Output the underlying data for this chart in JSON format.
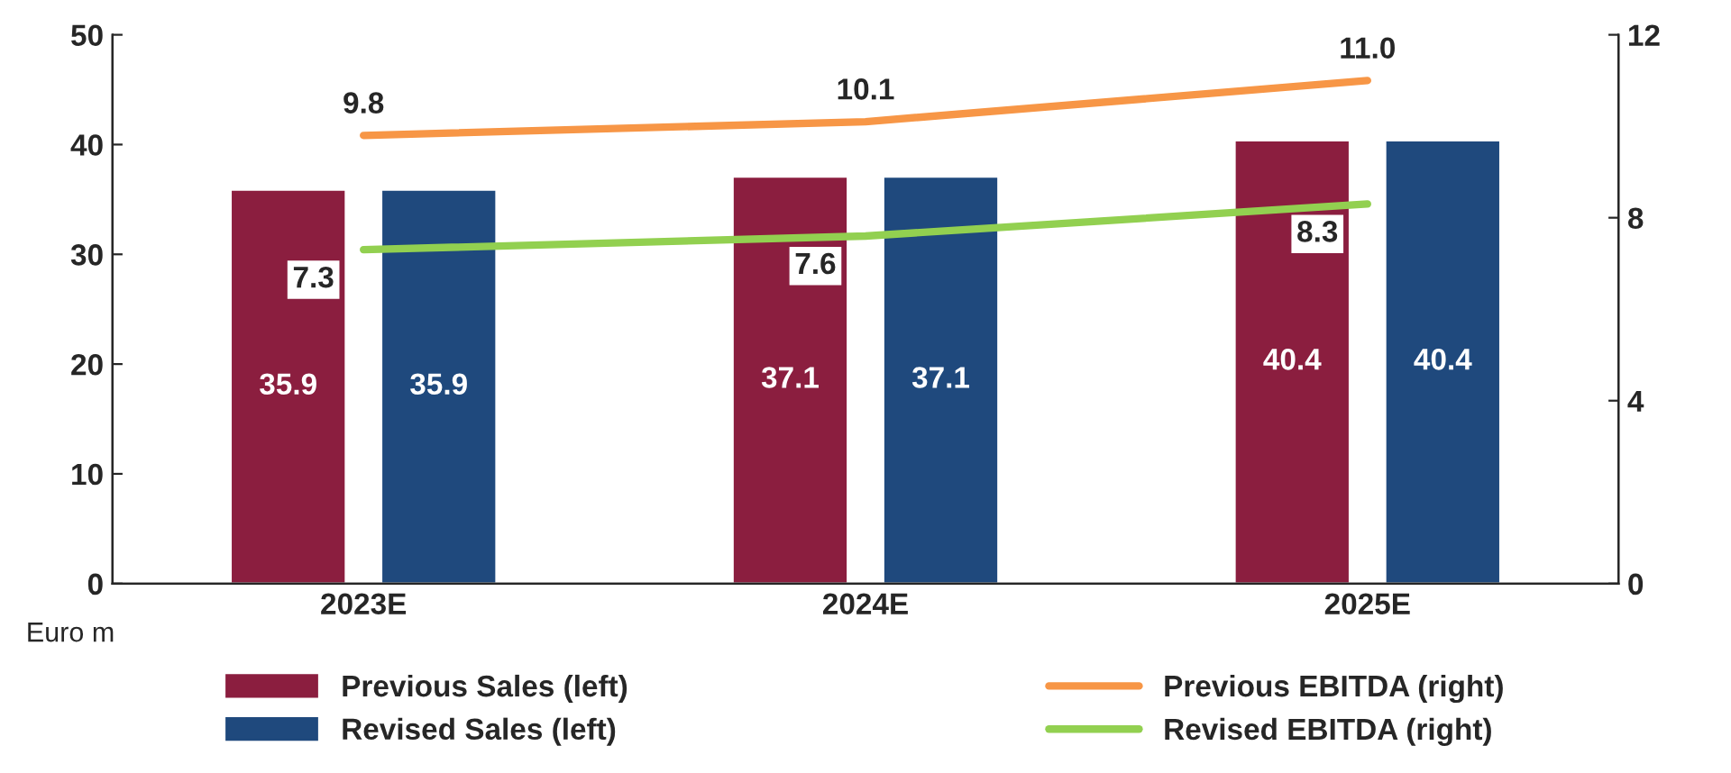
{
  "chart_data": {
    "type": "bar",
    "categories": [
      "2023E",
      "2024E",
      "2025E"
    ],
    "series": [
      {
        "name": "Previous Sales (left)",
        "color": "#8b1e3f",
        "values": [
          35.9,
          37.1,
          40.4
        ]
      },
      {
        "name": "Revised Sales (left)",
        "color": "#1f497d",
        "values": [
          35.9,
          37.1,
          40.4
        ]
      },
      {
        "name": "Previous EBITDA (right)",
        "type": "line",
        "axis": "y2",
        "color": "#f79646",
        "values": [
          9.8,
          10.1,
          11.0
        ],
        "value_labels": [
          "9.8",
          "10.1",
          "11.0"
        ]
      },
      {
        "name": "Revised EBITDA (right)",
        "type": "line",
        "axis": "y2",
        "color": "#92d050",
        "values": [
          7.3,
          7.6,
          8.3
        ],
        "value_labels": [
          "7.3",
          "7.6",
          "8.3"
        ]
      }
    ],
    "ylim": [
      0,
      50
    ],
    "yticks": [
      0,
      10,
      20,
      30,
      40,
      50
    ],
    "y2lim": [
      0,
      12
    ],
    "y2ticks": [
      0,
      4,
      8,
      12
    ],
    "annotations": [
      "Euro m"
    ],
    "data_labels": true,
    "legend": "bottom",
    "grid": false,
    "marker": "none",
    "line_style": "solid"
  }
}
